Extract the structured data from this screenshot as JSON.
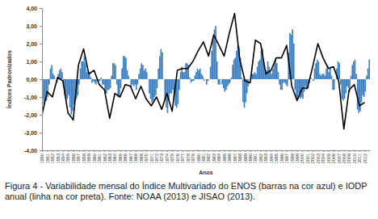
{
  "chart_data": {
    "type": "bar",
    "caption": "Figura 4 - Variabilidade mensal do Índice Multivariado do ENOS (barras na cor azul) e IODP anual (linha na cor preta). Fonte: NOAA (2013) e JISAO (2013).",
    "x_label": "Anos",
    "y_label": "Índices Padronizados",
    "xlim": [
      1950,
      2013
    ],
    "xticks": [
      1950,
      1951,
      1952,
      1953,
      1954,
      1955,
      1956,
      1957,
      1958,
      1959,
      1960,
      1961,
      1962,
      1963,
      1964,
      1965,
      1966,
      1967,
      1968,
      1969,
      1970,
      1971,
      1972,
      1973,
      1974,
      1975,
      1976,
      1977,
      1978,
      1979,
      1980,
      1981,
      1982,
      1983,
      1984,
      1985,
      1986,
      1987,
      1988,
      1989,
      1990,
      1991,
      1992,
      1993,
      1994,
      1995,
      1996,
      1997,
      1998,
      1999,
      2000,
      2001,
      2002,
      2003,
      2004,
      2005,
      2006,
      2007,
      2008,
      2009,
      2010,
      2011,
      2012
    ],
    "ylim": [
      -4,
      4
    ],
    "yticks": [
      {
        "value": 4,
        "label": "4,00"
      },
      {
        "value": 3,
        "label": "3,00"
      },
      {
        "value": 2,
        "label": "2,00"
      },
      {
        "value": 1,
        "label": "1,00"
      },
      {
        "value": 0,
        "label": "0,00"
      },
      {
        "value": -1,
        "label": "-1,00"
      },
      {
        "value": -2,
        "label": "-2,00"
      },
      {
        "value": -3,
        "label": "-3,00"
      },
      {
        "value": -4,
        "label": "-4,00"
      }
    ],
    "grid": false,
    "series": [
      {
        "type": "bar",
        "color": "#3a7fc1",
        "x": [
          1950.125,
          1950.375,
          1950.625,
          1950.875,
          1951.125,
          1951.375,
          1951.625,
          1951.875,
          1952.125,
          1952.375,
          1952.625,
          1952.875,
          1953.125,
          1953.375,
          1953.625,
          1953.875,
          1954.125,
          1954.375,
          1954.625,
          1954.875,
          1955.125,
          1955.375,
          1955.625,
          1955.875,
          1956.125,
          1956.375,
          1956.625,
          1956.875,
          1957.125,
          1957.375,
          1957.625,
          1957.875,
          1958.125,
          1958.375,
          1958.625,
          1958.875,
          1959.125,
          1959.375,
          1959.625,
          1959.875,
          1960.125,
          1960.375,
          1960.625,
          1960.875,
          1961.125,
          1961.375,
          1961.625,
          1961.875,
          1962.125,
          1962.375,
          1962.625,
          1962.875,
          1963.125,
          1963.375,
          1963.625,
          1963.875,
          1964.125,
          1964.375,
          1964.625,
          1964.875,
          1965.125,
          1965.375,
          1965.625,
          1965.875,
          1966.125,
          1966.375,
          1966.625,
          1966.875,
          1967.125,
          1967.375,
          1967.625,
          1967.875,
          1968.125,
          1968.375,
          1968.625,
          1968.875,
          1969.125,
          1969.375,
          1969.625,
          1969.875,
          1970.125,
          1970.375,
          1970.625,
          1970.875,
          1971.125,
          1971.375,
          1971.625,
          1971.875,
          1972.125,
          1972.375,
          1972.625,
          1972.875,
          1973.125,
          1973.375,
          1973.625,
          1973.875,
          1974.125,
          1974.375,
          1974.625,
          1974.875,
          1975.125,
          1975.375,
          1975.625,
          1975.875,
          1976.125,
          1976.375,
          1976.625,
          1976.875,
          1977.125,
          1977.375,
          1977.625,
          1977.875,
          1978.125,
          1978.375,
          1978.625,
          1978.875,
          1979.125,
          1979.375,
          1979.625,
          1979.875,
          1980.125,
          1980.375,
          1980.625,
          1980.875,
          1981.125,
          1981.375,
          1981.625,
          1981.875,
          1982.125,
          1982.375,
          1982.625,
          1982.875,
          1983.125,
          1983.375,
          1983.625,
          1983.875,
          1984.125,
          1984.375,
          1984.625,
          1984.875,
          1985.125,
          1985.375,
          1985.625,
          1985.875,
          1986.125,
          1986.375,
          1986.625,
          1986.875,
          1987.125,
          1987.375,
          1987.625,
          1987.875,
          1988.125,
          1988.375,
          1988.625,
          1988.875,
          1989.125,
          1989.375,
          1989.625,
          1989.875,
          1990.125,
          1990.375,
          1990.625,
          1990.875,
          1991.125,
          1991.375,
          1991.625,
          1991.875,
          1992.125,
          1992.375,
          1992.625,
          1992.875,
          1993.125,
          1993.375,
          1993.625,
          1993.875,
          1994.125,
          1994.375,
          1994.625,
          1994.875,
          1995.125,
          1995.375,
          1995.625,
          1995.875,
          1996.125,
          1996.375,
          1996.625,
          1996.875,
          1997.125,
          1997.375,
          1997.625,
          1997.875,
          1998.125,
          1998.375,
          1998.625,
          1998.875,
          1999.125,
          1999.375,
          1999.625,
          1999.875,
          2000.125,
          2000.375,
          2000.625,
          2000.875,
          2001.125,
          2001.375,
          2001.625,
          2001.875,
          2002.125,
          2002.375,
          2002.625,
          2002.875,
          2003.125,
          2003.375,
          2003.625,
          2003.875,
          2004.125,
          2004.375,
          2004.625,
          2004.875,
          2005.125,
          2005.375,
          2005.625,
          2005.875,
          2006.125,
          2006.375,
          2006.625,
          2006.875,
          2007.125,
          2007.375,
          2007.625,
          2007.875,
          2008.125,
          2008.375,
          2008.625,
          2008.875,
          2009.125,
          2009.375,
          2009.625,
          2009.875,
          2010.125,
          2010.375,
          2010.625,
          2010.875,
          2011.125,
          2011.375,
          2011.625,
          2011.875,
          2012.125,
          2012.375,
          2012.625,
          2012.875
        ],
        "values": [
          -1.1,
          -1.4,
          -1.2,
          -1.2,
          -1.0,
          -0.3,
          0.6,
          0.8,
          0.3,
          0.2,
          0.0,
          -0.2,
          0.3,
          0.5,
          0.6,
          0.4,
          -0.3,
          -0.9,
          -1.2,
          -1.1,
          -0.9,
          -1.6,
          -2.0,
          -1.8,
          -1.4,
          -1.2,
          -1.1,
          -0.9,
          -0.3,
          0.6,
          1.0,
          1.0,
          1.3,
          0.9,
          0.4,
          0.5,
          0.4,
          0.1,
          -0.2,
          -0.1,
          -0.2,
          -0.3,
          -0.1,
          -0.1,
          -0.1,
          0.1,
          -0.3,
          -0.3,
          -0.8,
          -0.8,
          -0.6,
          -0.6,
          -0.5,
          0.2,
          0.9,
          0.9,
          0.8,
          -0.3,
          -1.0,
          -1.0,
          -0.5,
          0.6,
          1.3,
          1.3,
          1.2,
          0.5,
          0.2,
          0.0,
          -0.5,
          -0.3,
          -0.4,
          -0.3,
          -0.6,
          -0.3,
          0.3,
          0.6,
          0.9,
          0.8,
          0.5,
          0.6,
          0.4,
          0.0,
          -0.8,
          -1.1,
          -1.3,
          -1.2,
          -1.0,
          -0.9,
          -0.5,
          0.6,
          1.3,
          1.7,
          1.5,
          0.0,
          -1.2,
          -1.6,
          -1.9,
          -1.2,
          -0.8,
          -0.8,
          -0.6,
          -1.0,
          -1.5,
          -1.6,
          -1.4,
          -0.6,
          0.4,
          0.7,
          0.4,
          0.4,
          0.9,
          0.9,
          0.8,
          0.1,
          -0.2,
          -0.1,
          -0.1,
          0.2,
          0.4,
          0.6,
          0.5,
          0.6,
          0.3,
          0.2,
          -0.1,
          0.0,
          -0.3,
          -0.1,
          0.0,
          0.7,
          1.6,
          2.3,
          2.8,
          3.0,
          1.0,
          -0.3,
          -0.3,
          0.0,
          -0.3,
          -0.5,
          -0.7,
          -0.6,
          -0.4,
          -0.3,
          -0.2,
          0.1,
          0.8,
          1.1,
          1.2,
          1.6,
          1.9,
          1.8,
          1.2,
          0.1,
          -1.3,
          -1.6,
          -1.3,
          -0.8,
          -0.4,
          0.0,
          0.2,
          0.3,
          0.3,
          0.4,
          0.3,
          0.7,
          1.0,
          1.1,
          1.6,
          1.7,
          0.9,
          0.4,
          0.5,
          1.0,
          0.7,
          0.5,
          0.3,
          0.6,
          0.9,
          1.2,
          0.9,
          0.4,
          -0.3,
          -0.6,
          -0.6,
          -0.2,
          -0.2,
          -0.3,
          -0.4,
          1.5,
          2.6,
          2.5,
          2.8,
          2.0,
          -0.6,
          -1.1,
          -1.1,
          -0.8,
          -1.1,
          -1.0,
          -1.1,
          -0.7,
          -0.4,
          -0.6,
          -0.5,
          -0.2,
          0.1,
          0.0,
          -0.1,
          0.6,
          0.9,
          1.1,
          1.0,
          0.3,
          0.2,
          0.3,
          0.3,
          0.2,
          0.6,
          0.8,
          0.4,
          0.7,
          0.2,
          -0.6,
          -0.6,
          0.0,
          0.6,
          1.0,
          0.9,
          -0.3,
          -1.1,
          -1.2,
          -1.1,
          -0.8,
          -0.4,
          -0.5,
          -0.7,
          0.2,
          0.8,
          1.0,
          1.1,
          0.3,
          -1.7,
          -1.9,
          -1.8,
          -1.3,
          -0.9,
          -1.0,
          -0.7,
          0.2,
          0.6,
          1.1
        ]
      },
      {
        "type": "line",
        "color": "#000000",
        "x": [
          1950,
          1951,
          1952,
          1953,
          1954,
          1955,
          1956,
          1957,
          1958,
          1959,
          1960,
          1961,
          1962,
          1963,
          1964,
          1965,
          1966,
          1967,
          1968,
          1969,
          1970,
          1971,
          1972,
          1973,
          1974,
          1975,
          1976,
          1977,
          1978,
          1979,
          1980,
          1981,
          1982,
          1983,
          1984,
          1985,
          1986,
          1987,
          1988,
          1989,
          1990,
          1991,
          1992,
          1993,
          1994,
          1995,
          1996,
          1997,
          1998,
          1999,
          2000,
          2001,
          2002,
          2003,
          2004,
          2005,
          2006,
          2007,
          2008,
          2009,
          2010,
          2011,
          2012
        ],
        "values": [
          -2.0,
          -0.7,
          -1.0,
          0.1,
          -0.1,
          -1.9,
          -2.3,
          0.8,
          1.7,
          0.3,
          0.5,
          -0.3,
          -0.6,
          -2.2,
          -0.8,
          -1.0,
          -0.3,
          -0.4,
          -1.1,
          -0.4,
          -1.1,
          -1.5,
          -1.0,
          -1.7,
          -0.8,
          -1.8,
          0.5,
          0.6,
          0.6,
          1.0,
          1.6,
          2.1,
          1.3,
          2.5,
          1.9,
          1.3,
          2.6,
          3.7,
          1.1,
          -0.1,
          -0.2,
          2.2,
          2.0,
          0.3,
          0.5,
          1.2,
          1.2,
          1.9,
          -0.4,
          -1.2,
          -0.5,
          -0.5,
          0.7,
          2.0,
          1.2,
          0.6,
          0.7,
          -0.1,
          -2.8,
          -0.6,
          -0.3,
          -1.5,
          -1.3
        ]
      }
    ]
  }
}
